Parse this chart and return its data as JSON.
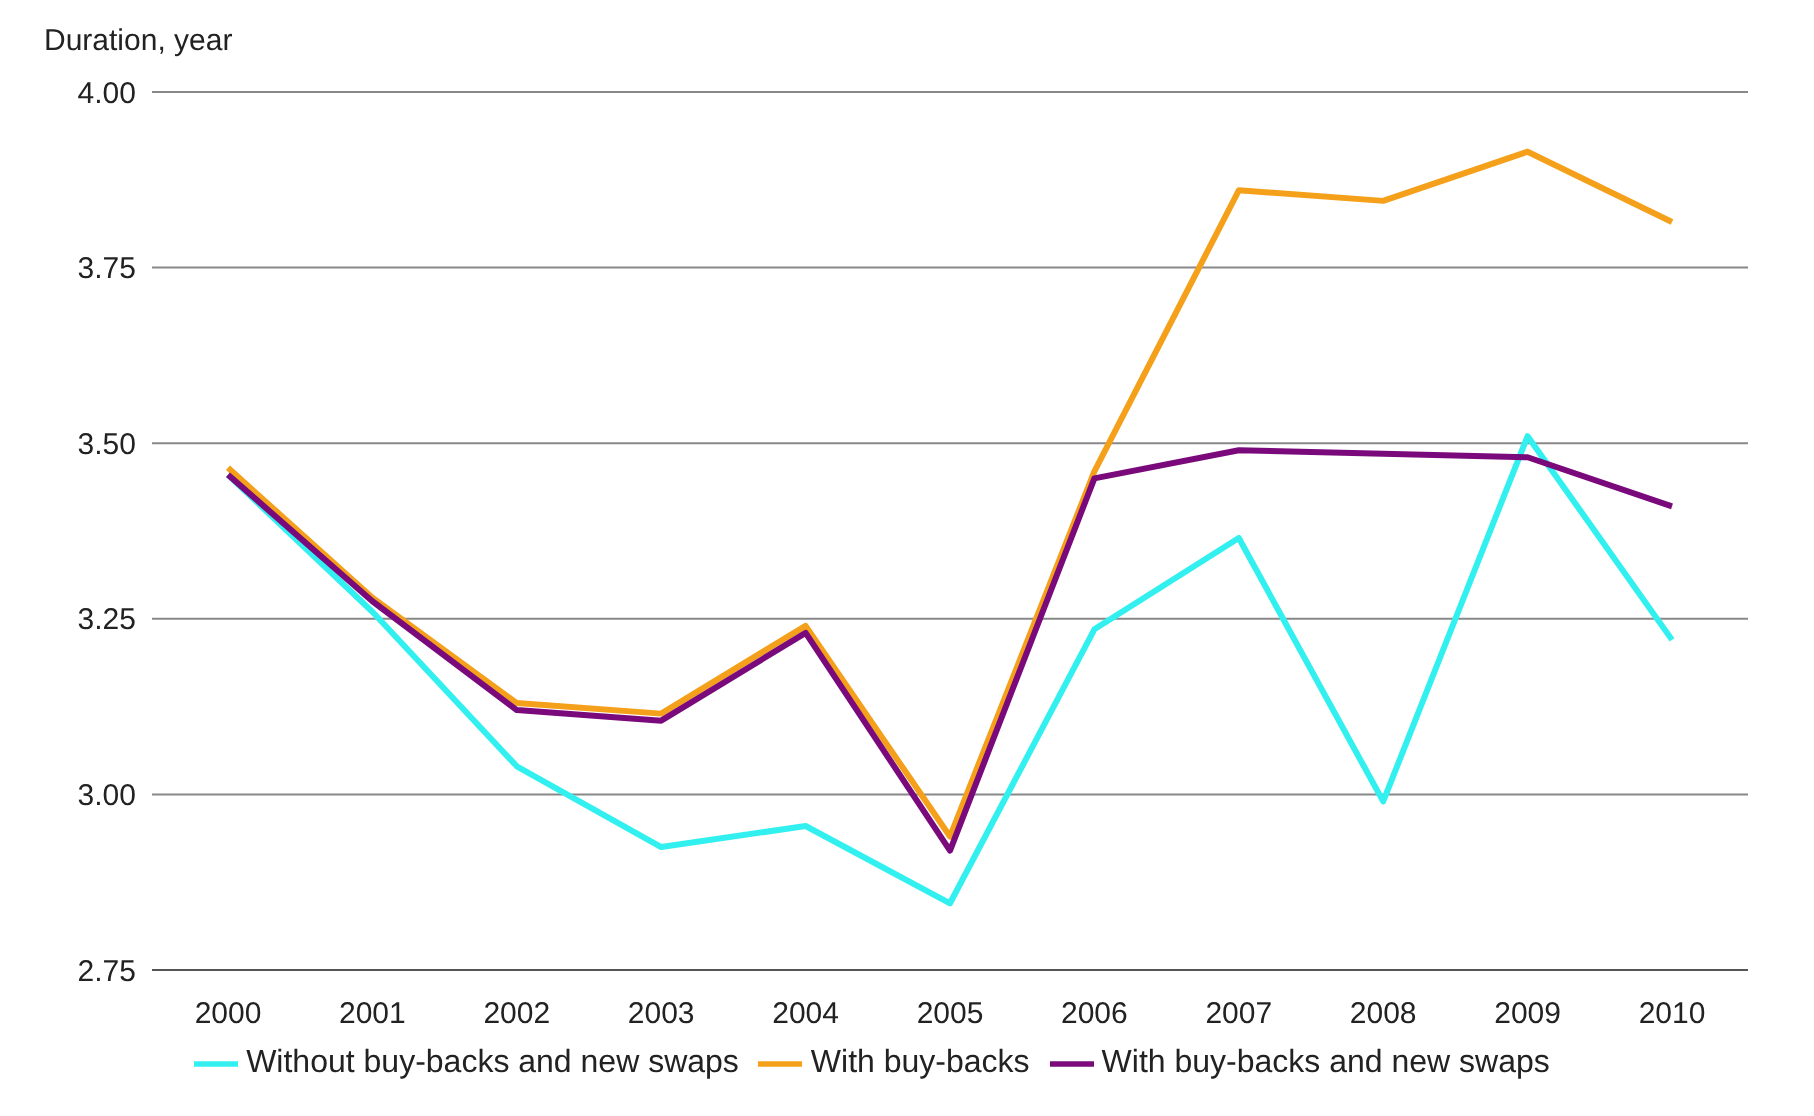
{
  "chart_data": {
    "type": "line",
    "ylabel": "Duration, year",
    "categories": [
      "2000",
      "2001",
      "2002",
      "2003",
      "2004",
      "2005",
      "2006",
      "2007",
      "2008",
      "2009",
      "2010"
    ],
    "series": [
      {
        "name": "Without buy-backs and new swaps",
        "color": "#33f0f0",
        "values": [
          3.455,
          3.26,
          3.04,
          2.925,
          2.955,
          2.845,
          3.235,
          3.365,
          2.99,
          3.51,
          3.22
        ]
      },
      {
        "name": "With buy-backs",
        "color": "#f5a01a",
        "values": [
          3.465,
          3.28,
          3.13,
          3.115,
          3.24,
          2.94,
          3.46,
          3.86,
          3.845,
          3.915,
          3.815
        ]
      },
      {
        "name": "With buy-backs and new swaps",
        "color": "#7a0a7c",
        "values": [
          3.455,
          3.275,
          3.12,
          3.105,
          3.23,
          2.92,
          3.45,
          3.49,
          3.485,
          3.48,
          3.41
        ]
      }
    ],
    "ylim": [
      2.75,
      4.0
    ],
    "yticks": [
      2.75,
      {
        "value": 3,
        "label": "3.00"
      },
      3.25,
      {
        "value": 3.5,
        "label": "3.50"
      },
      3.75,
      {
        "value": 4,
        "label": "4.00"
      }
    ],
    "grid": "y",
    "legend": "bottom",
    "marker": "none",
    "line_style": "solid"
  }
}
